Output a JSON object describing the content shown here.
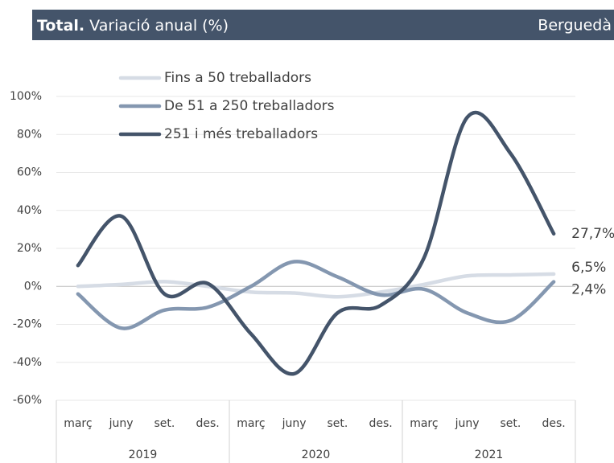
{
  "header": {
    "title_bold": "Total.",
    "title": "Variació anual (%)",
    "region": "Berguedà"
  },
  "chart_data": {
    "type": "line",
    "categories": [
      "març",
      "juny",
      "set.",
      "des.",
      "març",
      "juny",
      "set.",
      "des.",
      "març",
      "juny",
      "set.",
      "des."
    ],
    "years": [
      "2019",
      "2020",
      "2021"
    ],
    "series": [
      {
        "name": "Fins a 50 treballadors",
        "color": "#d6dce5",
        "values": [
          0,
          1,
          2.5,
          0,
          -3,
          -3.5,
          -5.5,
          -3,
          1,
          5.5,
          6,
          6.5
        ],
        "value_labels": [
          null,
          null,
          null,
          null,
          null,
          null,
          null,
          null,
          null,
          null,
          null,
          "6,5%"
        ]
      },
      {
        "name": "De 51 a 250 treballadors",
        "color": "#8497b0",
        "values": [
          -4,
          -22,
          -12.5,
          -11,
          0,
          13,
          5,
          -4.5,
          -1.5,
          -14,
          -18,
          2.4
        ],
        "value_labels": [
          null,
          null,
          null,
          null,
          null,
          null,
          null,
          null,
          null,
          null,
          null,
          "2,4%"
        ]
      },
      {
        "name": "251 i més treballadors",
        "color": "#44546a",
        "values": [
          11,
          37,
          -4,
          1.5,
          -25,
          -46,
          -14,
          -10,
          15,
          89,
          70,
          27.7
        ],
        "value_labels": [
          null,
          null,
          null,
          null,
          null,
          null,
          null,
          null,
          null,
          null,
          null,
          "27,7%"
        ]
      }
    ],
    "ylim": [
      -60,
      100
    ],
    "yticks": [
      {
        "value": -60,
        "label": "-60%"
      },
      {
        "value": -40,
        "label": "-40%"
      },
      {
        "value": -20,
        "label": "-20%"
      },
      {
        "value": 0,
        "label": "0%"
      },
      {
        "value": 20,
        "label": "20%"
      },
      {
        "value": 40,
        "label": "40%"
      },
      {
        "value": 60,
        "label": "60%"
      },
      {
        "value": 80,
        "label": "80%"
      },
      {
        "value": 100,
        "label": "100%"
      }
    ],
    "grid": true
  }
}
